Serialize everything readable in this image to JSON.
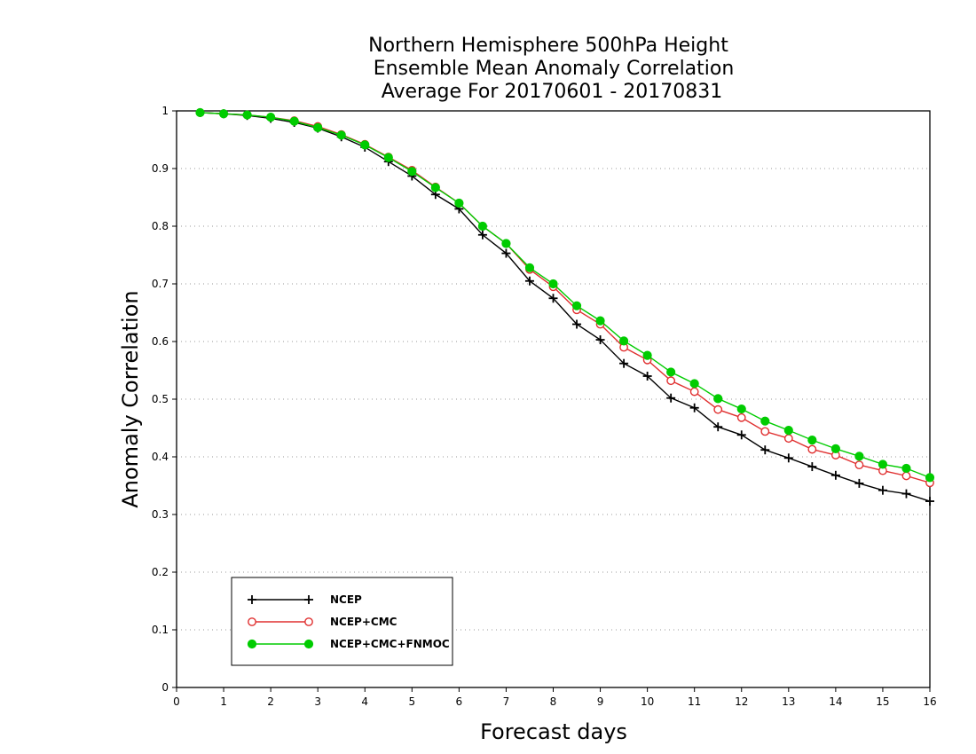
{
  "chart_data": {
    "type": "line",
    "title": [
      "Northern Hemisphere 500hPa Height",
      "Ensemble Mean Anomaly Correlation",
      "Average For 20170601 - 20170831"
    ],
    "xlabel": "Forecast days",
    "ylabel": "Anomaly Correlation",
    "xlim": [
      0,
      16
    ],
    "ylim": [
      0,
      1
    ],
    "x_ticks": [
      "0",
      "1",
      "2",
      "3",
      "4",
      "5",
      "6",
      "7",
      "8",
      "9",
      "10",
      "11",
      "12",
      "13",
      "14",
      "15",
      "16"
    ],
    "y_ticks": [
      "0",
      "0.1",
      "0.2",
      "0.3",
      "0.4",
      "0.5",
      "0.6",
      "0.7",
      "0.8",
      "0.9",
      "1"
    ],
    "grid": "horizontal dotted",
    "legend_position": "bottom-left",
    "x": [
      0.5,
      1,
      1.5,
      2,
      2.5,
      3,
      3.5,
      4,
      4.5,
      5,
      5.5,
      6,
      6.5,
      7,
      7.5,
      8,
      8.5,
      9,
      9.5,
      10,
      10.5,
      11,
      11.5,
      12,
      12.5,
      13,
      13.5,
      14,
      14.5,
      15,
      15.5,
      16
    ],
    "series": [
      {
        "name": "NCEP",
        "color": "#000000",
        "marker": "plus",
        "values": [
          0.997,
          0.995,
          0.992,
          0.987,
          0.98,
          0.97,
          0.955,
          0.937,
          0.912,
          0.887,
          0.855,
          0.83,
          0.785,
          0.753,
          0.705,
          0.675,
          0.63,
          0.603,
          0.562,
          0.54,
          0.502,
          0.485,
          0.452,
          0.438,
          0.412,
          0.398,
          0.383,
          0.368,
          0.354,
          0.342,
          0.336,
          0.323
        ]
      },
      {
        "name": "NCEP+CMC",
        "color": "#e03030",
        "marker": "open-circle",
        "values": [
          0.997,
          0.995,
          0.993,
          0.989,
          0.983,
          0.973,
          0.959,
          0.942,
          0.92,
          0.897,
          0.868,
          0.84,
          0.8,
          0.77,
          0.725,
          0.695,
          0.655,
          0.63,
          0.59,
          0.568,
          0.532,
          0.513,
          0.482,
          0.468,
          0.444,
          0.432,
          0.413,
          0.403,
          0.386,
          0.376,
          0.367,
          0.355
        ]
      },
      {
        "name": "NCEP+CMC+FNMOC",
        "color": "#00cc00",
        "marker": "filled-circle",
        "values": [
          0.997,
          0.995,
          0.993,
          0.989,
          0.982,
          0.971,
          0.958,
          0.941,
          0.919,
          0.895,
          0.867,
          0.84,
          0.8,
          0.77,
          0.728,
          0.7,
          0.662,
          0.636,
          0.601,
          0.576,
          0.547,
          0.527,
          0.501,
          0.483,
          0.462,
          0.446,
          0.429,
          0.414,
          0.401,
          0.387,
          0.38,
          0.364
        ]
      }
    ]
  }
}
